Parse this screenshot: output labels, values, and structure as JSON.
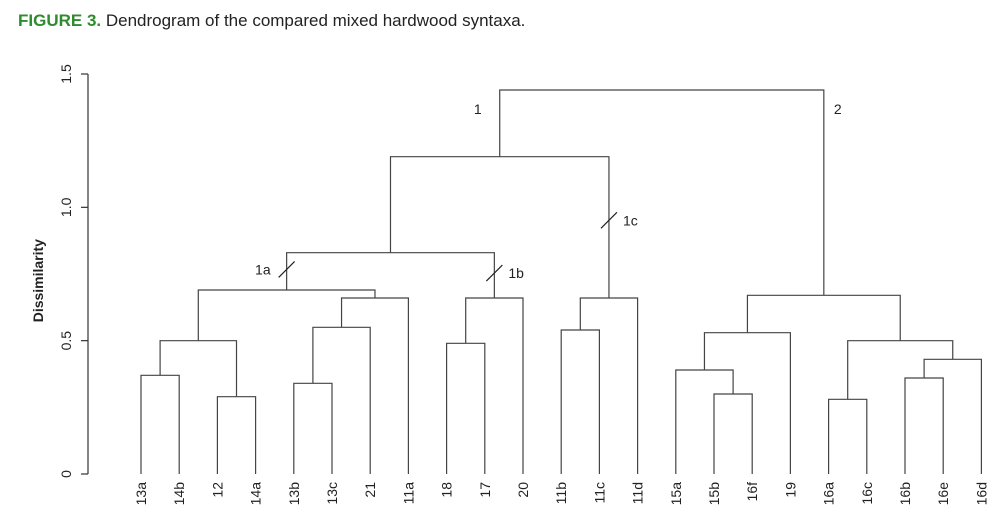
{
  "caption": {
    "label": "FIGURE 3.",
    "text": " Dendrogram of the compared mixed hardwood syntaxa."
  },
  "chart_data": {
    "type": "dendrogram",
    "ylabel": "Dissimilarity",
    "ylim": [
      0,
      1.5
    ],
    "yticks": [
      {
        "value": 0,
        "label": "0"
      },
      {
        "value": 0.5,
        "label": "0.5"
      },
      {
        "value": 1.0,
        "label": "1.0"
      },
      {
        "value": 1.5,
        "label": "1.5"
      }
    ],
    "leaves": [
      "13a",
      "14b",
      "12",
      "14a",
      "13b",
      "13c",
      "21",
      "11a",
      "18",
      "17",
      "20",
      "11b",
      "11c",
      "11d",
      "15a",
      "15b",
      "16f",
      "19",
      "16a",
      "16c",
      "16b",
      "16e",
      "16d"
    ],
    "merges": [
      {
        "id": "m1",
        "left": "13a",
        "right": "14b",
        "height": 0.37
      },
      {
        "id": "m2",
        "left": "12",
        "right": "14a",
        "height": 0.29
      },
      {
        "id": "m3",
        "left": "m1",
        "right": "m2",
        "height": 0.5
      },
      {
        "id": "m4",
        "left": "13b",
        "right": "13c",
        "height": 0.34
      },
      {
        "id": "m5",
        "left": "m4",
        "right": "21",
        "height": 0.55
      },
      {
        "id": "m6",
        "left": "m5",
        "right": "11a",
        "height": 0.66
      },
      {
        "id": "m7",
        "left": "m3",
        "right": "m6",
        "height": 0.69
      },
      {
        "id": "m8",
        "left": "18",
        "right": "17",
        "height": 0.49
      },
      {
        "id": "m9",
        "left": "m8",
        "right": "20",
        "height": 0.66
      },
      {
        "id": "m10",
        "left": "m7",
        "right": "m9",
        "height": 0.83
      },
      {
        "id": "m11",
        "left": "11b",
        "right": "11c",
        "height": 0.54
      },
      {
        "id": "m12",
        "left": "m11",
        "right": "11d",
        "height": 0.66
      },
      {
        "id": "m13",
        "left": "m10",
        "right": "m12",
        "height": 1.19
      },
      {
        "id": "m14",
        "left": "16f",
        "right": "15b",
        "height": 0.3
      },
      {
        "id": "m15",
        "left": "15a",
        "right": "m14",
        "height": 0.39
      },
      {
        "id": "m16",
        "left": "m15",
        "right": "19",
        "height": 0.53
      },
      {
        "id": "m17",
        "left": "16a",
        "right": "16c",
        "height": 0.28
      },
      {
        "id": "m18",
        "left": "16b",
        "right": "16e",
        "height": 0.36
      },
      {
        "id": "m19",
        "left": "m18",
        "right": "16d",
        "height": 0.43
      },
      {
        "id": "m20",
        "left": "m17",
        "right": "m19",
        "height": 0.5
      },
      {
        "id": "m21",
        "left": "m16",
        "right": "m20",
        "height": 0.67
      },
      {
        "id": "m22",
        "left": "m13",
        "right": "m21",
        "height": 1.44
      }
    ],
    "cluster_labels": [
      {
        "text": "1",
        "merge": "m22",
        "side": "left"
      },
      {
        "text": "2",
        "merge": "m22",
        "side": "right"
      },
      {
        "text": "1a",
        "merge": "m10",
        "side": "left"
      },
      {
        "text": "1b",
        "merge": "m10",
        "side": "right"
      },
      {
        "text": "1c",
        "merge": "m13",
        "side": "right"
      }
    ]
  }
}
